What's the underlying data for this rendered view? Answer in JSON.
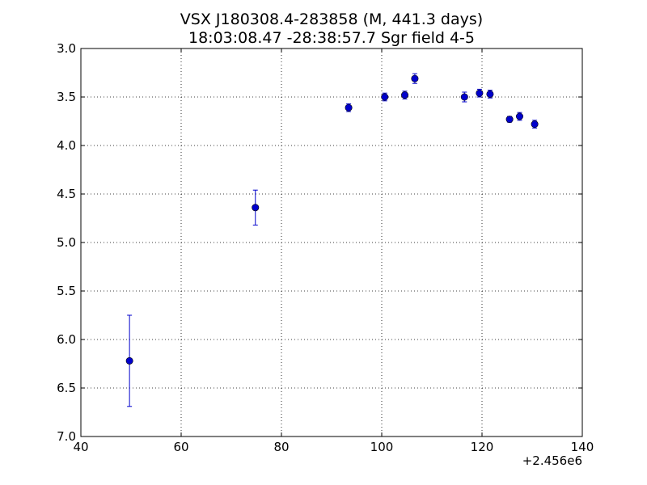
{
  "chart_data": {
    "type": "scatter",
    "title": "VSX J180308.4-283858 (M, 441.3 days)",
    "subtitle": "18:03:08.47 -28:38:57.7 Sgr field 4-5",
    "xlabel": "",
    "ylabel": "",
    "x_offset_label": "+2.456e6",
    "xlim": [
      40,
      140
    ],
    "ylim": [
      7.0,
      3.0
    ],
    "y_inverted": true,
    "grid": true,
    "xticks": [
      40,
      60,
      80,
      100,
      120,
      140
    ],
    "xtick_labels": [
      "40",
      "60",
      "80",
      "100",
      "120",
      "140"
    ],
    "yticks": [
      3.0,
      3.5,
      4.0,
      4.5,
      5.0,
      5.5,
      6.0,
      6.5,
      7.0
    ],
    "ytick_labels": [
      "3.0",
      "3.5",
      "4.0",
      "4.5",
      "5.0",
      "5.5",
      "6.0",
      "6.5",
      "7.0"
    ],
    "series": [
      {
        "color": "#0000cc",
        "x": [
          49.7,
          74.8,
          93.4,
          100.6,
          104.6,
          106.6,
          116.5,
          119.5,
          121.6,
          125.5,
          127.5,
          130.5
        ],
        "y": [
          6.22,
          4.64,
          3.61,
          3.5,
          3.48,
          3.31,
          3.5,
          3.46,
          3.47,
          3.73,
          3.7,
          3.78
        ],
        "yerr": [
          0.47,
          0.18,
          0.04,
          0.04,
          0.04,
          0.05,
          0.05,
          0.04,
          0.04,
          0.03,
          0.04,
          0.04
        ]
      }
    ]
  }
}
